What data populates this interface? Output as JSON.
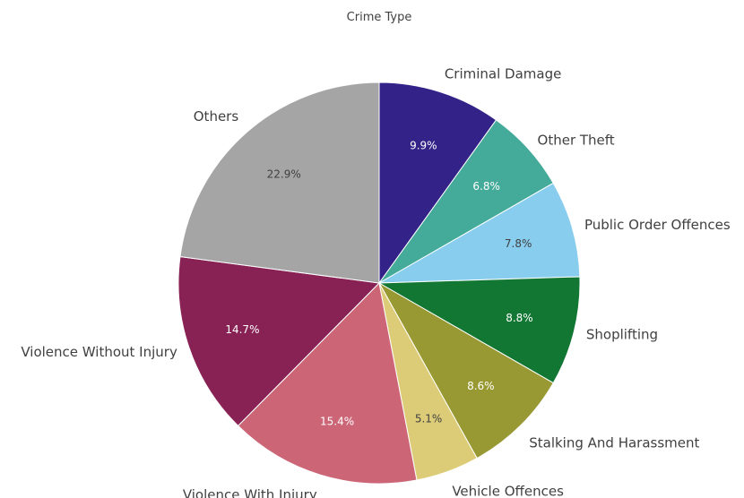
{
  "chart_data": {
    "type": "pie",
    "title": "Crime Type",
    "start_angle_deg": 0,
    "direction": "clockwise",
    "slices": [
      {
        "label": "Criminal Damage",
        "value": 9.9,
        "display": "9.9%",
        "color": "#332288",
        "pct_color": "#ffffff"
      },
      {
        "label": "Other Theft",
        "value": 6.8,
        "display": "6.8%",
        "color": "#44aa99",
        "pct_color": "#ffffff"
      },
      {
        "label": "Public Order Offences",
        "value": 7.8,
        "display": "7.8%",
        "color": "#88ccee",
        "pct_color": "#404040"
      },
      {
        "label": "Shoplifting",
        "value": 8.8,
        "display": "8.8%",
        "color": "#117733",
        "pct_color": "#ffffff"
      },
      {
        "label": "Stalking And Harassment",
        "value": 8.6,
        "display": "8.6%",
        "color": "#999933",
        "pct_color": "#ffffff"
      },
      {
        "label": "Vehicle Offences",
        "value": 5.1,
        "display": "5.1%",
        "color": "#ddcc77",
        "pct_color": "#404040"
      },
      {
        "label": "Violence With Injury",
        "value": 15.4,
        "display": "15.4%",
        "color": "#cc6677",
        "pct_color": "#ffffff"
      },
      {
        "label": "Violence Without Injury",
        "value": 14.7,
        "display": "14.7%",
        "color": "#882255",
        "pct_color": "#ffffff"
      },
      {
        "label": "Others",
        "value": 22.9,
        "display": "22.9%",
        "color": "#a5a5a5",
        "pct_color": "#404040"
      }
    ]
  }
}
